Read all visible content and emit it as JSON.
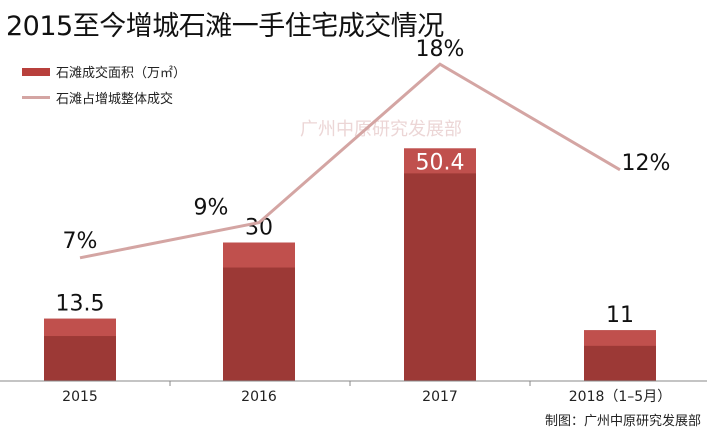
{
  "title": "2015至今增城石滩一手住宅成交情况",
  "source": "制图：广州中原研究发展部",
  "watermark": "广州中原研究发展部",
  "colors": {
    "bar_top": "#c0504d",
    "bar_body": "#9c3936",
    "line": "#d4a5a3"
  },
  "chart_data": {
    "type": "bar",
    "categories": [
      "2015",
      "2016",
      "2017",
      "2018（1–5月）"
    ],
    "series": [
      {
        "name": "石滩成交面积（万㎡）",
        "type": "bar",
        "values": [
          13.5,
          30,
          50.4,
          11
        ],
        "labels": [
          "13.5",
          "30",
          "50.4",
          "11"
        ]
      },
      {
        "name": "石滩占增城整体成交",
        "type": "line",
        "values": [
          7,
          9,
          18,
          12
        ],
        "labels": [
          "7%",
          "9%",
          "18%",
          "12%"
        ]
      }
    ],
    "legend": "top-left",
    "grid": false
  }
}
